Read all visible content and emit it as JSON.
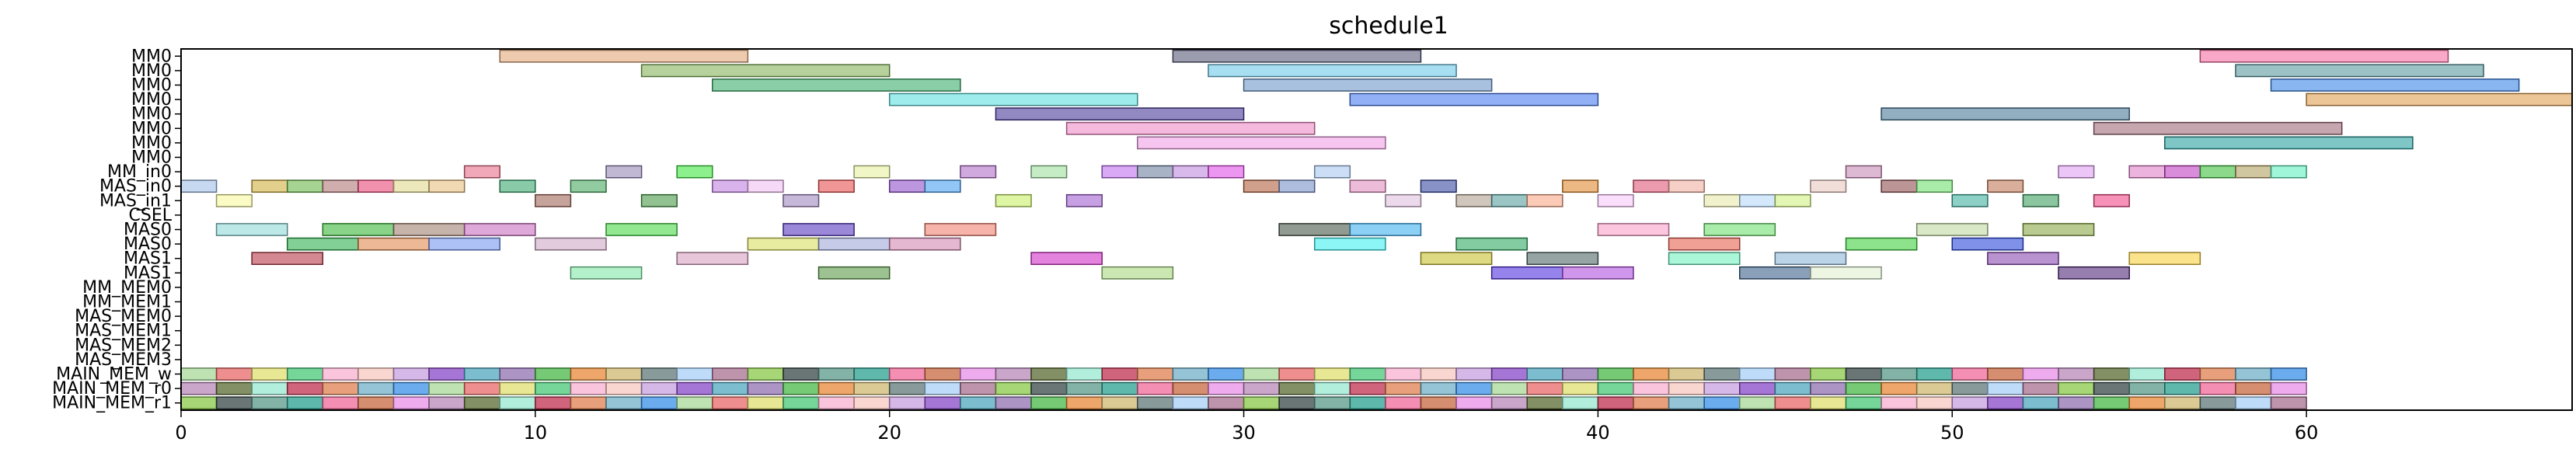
{
  "chart_data": {
    "type": "gantt",
    "title": "schedule1",
    "xlabel": "",
    "ylabel": "",
    "xlim": [
      0,
      67.5
    ],
    "xticks": [
      0,
      10,
      20,
      30,
      40,
      50,
      60
    ],
    "rows": [
      "MM0",
      "MM0",
      "MM0",
      "MM0",
      "MM0",
      "MM0",
      "MM0",
      "MM0",
      "MM_in0",
      "MAS_in0",
      "MAS_in1",
      "CSEL",
      "MAS0",
      "MAS0",
      "MAS1",
      "MAS1",
      "MM_MEM0",
      "MM_MEM1",
      "MAS_MEM0",
      "MAS_MEM1",
      "MAS_MEM2",
      "MAS_MEM3",
      "MAIN_MEM_w",
      "MAIN_MEM_r0",
      "MAIN_MEM_r1"
    ],
    "tasks": [
      {
        "row": 0,
        "start": 9,
        "end": 16,
        "color": "#e3a87a"
      },
      {
        "row": 0,
        "start": 28,
        "end": 35,
        "color": "#5a5a7a"
      },
      {
        "row": 0,
        "start": 57,
        "end": 64,
        "color": "#f56fa1"
      },
      {
        "row": 1,
        "start": 13,
        "end": 20,
        "color": "#85b35a"
      },
      {
        "row": 1,
        "start": 29,
        "end": 36,
        "color": "#6cc8e8"
      },
      {
        "row": 1,
        "start": 58,
        "end": 65,
        "color": "#5a9aa0"
      },
      {
        "row": 2,
        "start": 15,
        "end": 22,
        "color": "#3aae6a"
      },
      {
        "row": 2,
        "start": 30,
        "end": 37,
        "color": "#6e98c8"
      },
      {
        "row": 2,
        "start": 59,
        "end": 66,
        "color": "#3a86e8"
      },
      {
        "row": 3,
        "start": 20,
        "end": 27,
        "color": "#5ee0e0"
      },
      {
        "row": 3,
        "start": 33,
        "end": 40,
        "color": "#4a7cf0"
      },
      {
        "row": 3,
        "start": 60,
        "end": 67.5,
        "color": "#e0a050"
      },
      {
        "row": 4,
        "start": 23,
        "end": 30,
        "color": "#4a3a9a"
      },
      {
        "row": 4,
        "start": 48,
        "end": 55,
        "color": "#4a7898"
      },
      {
        "row": 5,
        "start": 25,
        "end": 32,
        "color": "#f08ac8"
      },
      {
        "row": 5,
        "start": 54,
        "end": 61,
        "color": "#a06a7a"
      },
      {
        "row": 6,
        "start": 27,
        "end": 34,
        "color": "#f0a0e8"
      },
      {
        "row": 6,
        "start": 56,
        "end": 63,
        "color": "#2aa0a0"
      },
      {
        "row": 8,
        "start": 8,
        "end": 9,
        "color": "#e8708a"
      },
      {
        "row": 8,
        "start": 12,
        "end": 13,
        "color": "#9888b8"
      },
      {
        "row": 8,
        "start": 14,
        "end": 15,
        "color": "#40e840"
      },
      {
        "row": 8,
        "start": 19,
        "end": 20,
        "color": "#e8f0a0"
      },
      {
        "row": 8,
        "start": 22,
        "end": 23,
        "color": "#b070c8"
      },
      {
        "row": 8,
        "start": 24,
        "end": 25,
        "color": "#a0e0a0"
      },
      {
        "row": 8,
        "start": 26,
        "end": 27,
        "color": "#c070f0"
      },
      {
        "row": 8,
        "start": 27,
        "end": 28,
        "color": "#7080a0"
      },
      {
        "row": 8,
        "start": 28,
        "end": 29,
        "color": "#c088e0"
      },
      {
        "row": 8,
        "start": 29,
        "end": 30,
        "color": "#e050e8"
      },
      {
        "row": 8,
        "start": 32,
        "end": 33,
        "color": "#a8c8f0"
      },
      {
        "row": 8,
        "start": 47,
        "end": 48,
        "color": "#c88ab8"
      },
      {
        "row": 8,
        "start": 53,
        "end": 54,
        "color": "#e0a0f0"
      },
      {
        "row": 8,
        "start": 55,
        "end": 56,
        "color": "#e080c8"
      },
      {
        "row": 8,
        "start": 56,
        "end": 57,
        "color": "#c040c0"
      },
      {
        "row": 8,
        "start": 57,
        "end": 58,
        "color": "#40c040"
      },
      {
        "row": 8,
        "start": 58,
        "end": 59,
        "color": "#b0a060"
      },
      {
        "row": 8,
        "start": 59,
        "end": 60,
        "color": "#60f0c0"
      },
      {
        "row": 9,
        "start": 0,
        "end": 1,
        "color": "#a0c0e8"
      },
      {
        "row": 9,
        "start": 2,
        "end": 3,
        "color": "#d0b040"
      },
      {
        "row": 9,
        "start": 3,
        "end": 4,
        "color": "#6ab84a"
      },
      {
        "row": 9,
        "start": 4,
        "end": 5,
        "color": "#b07878"
      },
      {
        "row": 9,
        "start": 5,
        "end": 6,
        "color": "#e84878"
      },
      {
        "row": 9,
        "start": 6,
        "end": 7,
        "color": "#e0d890"
      },
      {
        "row": 9,
        "start": 7,
        "end": 8,
        "color": "#e8c080"
      },
      {
        "row": 9,
        "start": 9,
        "end": 10,
        "color": "#3aa870"
      },
      {
        "row": 9,
        "start": 11,
        "end": 12,
        "color": "#4aa860"
      },
      {
        "row": 9,
        "start": 15,
        "end": 16,
        "color": "#c080e0"
      },
      {
        "row": 9,
        "start": 16,
        "end": 17,
        "color": "#f0c0f0"
      },
      {
        "row": 9,
        "start": 18,
        "end": 19,
        "color": "#e85050"
      },
      {
        "row": 9,
        "start": 20,
        "end": 21,
        "color": "#9050c8"
      },
      {
        "row": 9,
        "start": 21,
        "end": 22,
        "color": "#4aa0f0"
      },
      {
        "row": 9,
        "start": 30,
        "end": 31,
        "color": "#b06040"
      },
      {
        "row": 9,
        "start": 31,
        "end": 32,
        "color": "#7890c8"
      },
      {
        "row": 9,
        "start": 33,
        "end": 34,
        "color": "#e090c0"
      },
      {
        "row": 9,
        "start": 35,
        "end": 36,
        "color": "#3a4aa0"
      },
      {
        "row": 9,
        "start": 39,
        "end": 40,
        "color": "#e08830"
      },
      {
        "row": 9,
        "start": 41,
        "end": 42,
        "color": "#e05878"
      },
      {
        "row": 9,
        "start": 42,
        "end": 43,
        "color": "#f0b0a0"
      },
      {
        "row": 9,
        "start": 46,
        "end": 47,
        "color": "#e8c8c0"
      },
      {
        "row": 9,
        "start": 48,
        "end": 49,
        "color": "#905050"
      },
      {
        "row": 9,
        "start": 49,
        "end": 50,
        "color": "#70e070"
      },
      {
        "row": 9,
        "start": 51,
        "end": 52,
        "color": "#c07858"
      },
      {
        "row": 10,
        "start": 1,
        "end": 2,
        "color": "#f8f8a0"
      },
      {
        "row": 10,
        "start": 10,
        "end": 11,
        "color": "#a06858"
      },
      {
        "row": 10,
        "start": 13,
        "end": 14,
        "color": "#4a9a48"
      },
      {
        "row": 10,
        "start": 17,
        "end": 18,
        "color": "#a088c0"
      },
      {
        "row": 10,
        "start": 23,
        "end": 24,
        "color": "#c8f068"
      },
      {
        "row": 10,
        "start": 25,
        "end": 26,
        "color": "#a060d0"
      },
      {
        "row": 10,
        "start": 34,
        "end": 35,
        "color": "#e0c0e0"
      },
      {
        "row": 10,
        "start": 36,
        "end": 37,
        "color": "#b0a090"
      },
      {
        "row": 10,
        "start": 37,
        "end": 38,
        "color": "#5aa0a0"
      },
      {
        "row": 10,
        "start": 38,
        "end": 39,
        "color": "#f8a888"
      },
      {
        "row": 10,
        "start": 40,
        "end": 41,
        "color": "#f8c8f8"
      },
      {
        "row": 10,
        "start": 43,
        "end": 44,
        "color": "#e8e8a8"
      },
      {
        "row": 10,
        "start": 44,
        "end": 45,
        "color": "#b8d8f8"
      },
      {
        "row": 10,
        "start": 45,
        "end": 46,
        "color": "#d0f080"
      },
      {
        "row": 10,
        "start": 50,
        "end": 51,
        "color": "#40b0a0"
      },
      {
        "row": 10,
        "start": 52,
        "end": 53,
        "color": "#40a060"
      },
      {
        "row": 10,
        "start": 54,
        "end": 55,
        "color": "#f04888"
      },
      {
        "row": 12,
        "start": 1,
        "end": 3,
        "color": "#90d8d8"
      },
      {
        "row": 12,
        "start": 4,
        "end": 6,
        "color": "#3ab83a"
      },
      {
        "row": 12,
        "start": 6,
        "end": 8,
        "color": "#a08070"
      },
      {
        "row": 12,
        "start": 8,
        "end": 10,
        "color": "#c870c0"
      },
      {
        "row": 12,
        "start": 12,
        "end": 14,
        "color": "#48d848"
      },
      {
        "row": 12,
        "start": 17,
        "end": 19,
        "color": "#5a38c0"
      },
      {
        "row": 12,
        "start": 21,
        "end": 23,
        "color": "#f08070"
      },
      {
        "row": 12,
        "start": 31,
        "end": 33,
        "color": "#4a584a"
      },
      {
        "row": 12,
        "start": 33,
        "end": 35,
        "color": "#40b0f0"
      },
      {
        "row": 12,
        "start": 40,
        "end": 42,
        "color": "#f8a0c8"
      },
      {
        "row": 12,
        "start": 43,
        "end": 45,
        "color": "#70e070"
      },
      {
        "row": 12,
        "start": 49,
        "end": 51,
        "color": "#c0d8a0"
      },
      {
        "row": 12,
        "start": 52,
        "end": 54,
        "color": "#8aa848"
      },
      {
        "row": 13,
        "start": 3,
        "end": 5,
        "color": "#30b050"
      },
      {
        "row": 13,
        "start": 5,
        "end": 7,
        "color": "#e08850"
      },
      {
        "row": 13,
        "start": 7,
        "end": 9,
        "color": "#7898f0"
      },
      {
        "row": 13,
        "start": 10,
        "end": 12,
        "color": "#d0a8c8"
      },
      {
        "row": 13,
        "start": 16,
        "end": 18,
        "color": "#d8e060"
      },
      {
        "row": 13,
        "start": 18,
        "end": 20,
        "color": "#a0a8d8"
      },
      {
        "row": 13,
        "start": 20,
        "end": 22,
        "color": "#d088b0"
      },
      {
        "row": 13,
        "start": 32,
        "end": 34,
        "color": "#40f0f0"
      },
      {
        "row": 13,
        "start": 36,
        "end": 38,
        "color": "#30a860"
      },
      {
        "row": 13,
        "start": 42,
        "end": 44,
        "color": "#e86050"
      },
      {
        "row": 13,
        "start": 47,
        "end": 49,
        "color": "#40d040"
      },
      {
        "row": 13,
        "start": 50,
        "end": 52,
        "color": "#2a48d8"
      },
      {
        "row": 14,
        "start": 2,
        "end": 4,
        "color": "#b83848"
      },
      {
        "row": 14,
        "start": 14,
        "end": 16,
        "color": "#d8a0c0"
      },
      {
        "row": 14,
        "start": 24,
        "end": 26,
        "color": "#d030c8"
      },
      {
        "row": 14,
        "start": 35,
        "end": 37,
        "color": "#c8c030"
      },
      {
        "row": 14,
        "start": 38,
        "end": 40,
        "color": "#506868"
      },
      {
        "row": 14,
        "start": 42,
        "end": 44,
        "color": "#70f0c0"
      },
      {
        "row": 14,
        "start": 45,
        "end": 47,
        "color": "#90b8d8"
      },
      {
        "row": 14,
        "start": 51,
        "end": 53,
        "color": "#8a4ab0"
      },
      {
        "row": 14,
        "start": 55,
        "end": 57,
        "color": "#f8d040"
      },
      {
        "row": 15,
        "start": 11,
        "end": 13,
        "color": "#80e8a8"
      },
      {
        "row": 15,
        "start": 18,
        "end": 20,
        "color": "#5a9a48"
      },
      {
        "row": 15,
        "start": 26,
        "end": 28,
        "color": "#a8d880"
      },
      {
        "row": 15,
        "start": 37,
        "end": 39,
        "color": "#5030e0"
      },
      {
        "row": 15,
        "start": 39,
        "end": 41,
        "color": "#b050e0"
      },
      {
        "row": 15,
        "start": 44,
        "end": 46,
        "color": "#3a6088"
      },
      {
        "row": 15,
        "start": 46,
        "end": 48,
        "color": "#e0f0d0"
      },
      {
        "row": 15,
        "start": 53,
        "end": 55,
        "color": "#502878"
      }
    ],
    "mem_palette": [
      "#a8d898",
      "#607878",
      "#c03050",
      "#9070b0",
      "#e890e8",
      "#f8c8c0",
      "#5a9a88",
      "#e86868",
      "#a8d0f8",
      "#e08050",
      "#48b848",
      "#b888b8",
      "#c8a0e0",
      "#2aa090",
      "#e0e070",
      "#a87090",
      "#70b0c8",
      "#e88838",
      "#5a6a30",
      "#8848c8",
      "#f06898",
      "#48c878",
      "#88c848",
      "#3a90e8",
      "#d0b870",
      "#98e8d0",
      "#50a8c0",
      "#c86840",
      "#f8b0d0",
      "#384848"
    ]
  }
}
